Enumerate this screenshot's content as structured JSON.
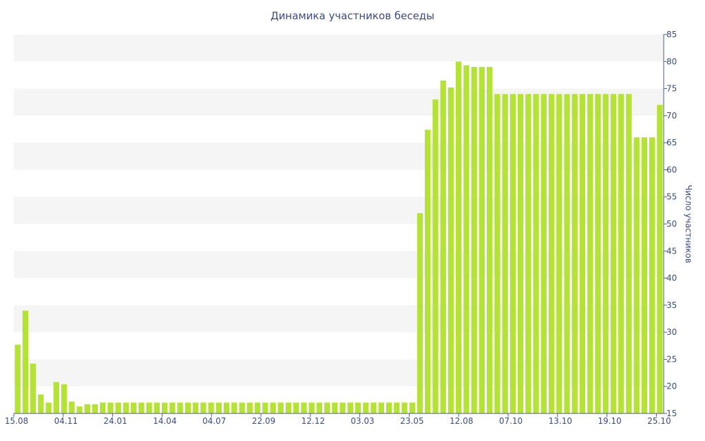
{
  "chart_data": {
    "type": "bar",
    "title": "Динамика участников беседы",
    "xlabel": "",
    "ylabel": "Число участников",
    "ylim": [
      15,
      85
    ],
    "yticks": [
      15,
      20,
      25,
      30,
      35,
      40,
      45,
      50,
      55,
      60,
      65,
      70,
      75,
      80,
      85
    ],
    "xtick_labels": [
      "15.08",
      "04.11",
      "24.01",
      "14.04",
      "04.07",
      "22.09",
      "12.12",
      "03.03",
      "23.05",
      "12.08",
      "07.10",
      "13.10",
      "19.10",
      "25.10"
    ],
    "grid": "alternating horizontal bands",
    "bar_color": "#b5e237",
    "series": [
      {
        "values": [
          27.7,
          34,
          24.2,
          18.5,
          17,
          20.8,
          20.4,
          17.2,
          16.3,
          16.7,
          16.7,
          17,
          17,
          17,
          17,
          17,
          17,
          17,
          17,
          17,
          17,
          17,
          17,
          17,
          17,
          17,
          17,
          17,
          17,
          17,
          17,
          17,
          17,
          17,
          17,
          17,
          17,
          17,
          17,
          17,
          17,
          17,
          17,
          17,
          17,
          17,
          17,
          17,
          17,
          17,
          17,
          17,
          52,
          67.4,
          73,
          76.5,
          75.2,
          80,
          79.3,
          79,
          79,
          79,
          74,
          74,
          74,
          74,
          74,
          74,
          74,
          74,
          74,
          74,
          74,
          74,
          74,
          74,
          74,
          74,
          74,
          74,
          66,
          66,
          66,
          72
        ]
      }
    ]
  }
}
